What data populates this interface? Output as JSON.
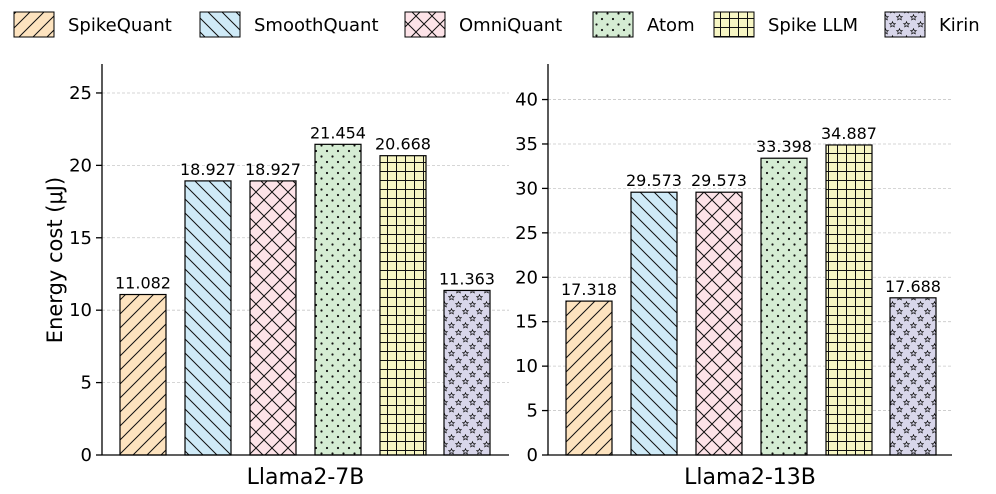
{
  "chart_data": {
    "type": "bar",
    "ylabel": "Energy cost (μJ)",
    "legend": {
      "placement": "top",
      "entries": [
        {
          "name": "SpikeQuant",
          "color": "#fde3bf",
          "hatch": "diag-up"
        },
        {
          "name": "SmoothQuant",
          "color": "#cfeaf7",
          "hatch": "diag-down"
        },
        {
          "name": "OmniQuant",
          "color": "#fde3e8",
          "hatch": "cross"
        },
        {
          "name": "Atom",
          "color": "#d5ecd3",
          "hatch": "dots"
        },
        {
          "name": "Spike LLM",
          "color": "#f7f6c4",
          "hatch": "grid"
        },
        {
          "name": "Kirin",
          "color": "#d8d6ea",
          "hatch": "stars"
        }
      ]
    },
    "panels": [
      {
        "xlabel": "Llama2-7B",
        "ylim": [
          0,
          27
        ],
        "yticks": [
          0,
          5,
          10,
          15,
          20,
          25
        ],
        "grid": true,
        "values": [
          11.082,
          18.927,
          18.927,
          21.454,
          20.668,
          11.363
        ],
        "labels": [
          "11.082",
          "18.927",
          "18.927",
          "21.454",
          "20.668",
          "11.363"
        ]
      },
      {
        "xlabel": "Llama2-13B",
        "ylim": [
          0,
          44
        ],
        "yticks": [
          0,
          5,
          10,
          15,
          20,
          25,
          30,
          35,
          40
        ],
        "grid": true,
        "values": [
          17.318,
          29.573,
          29.573,
          33.398,
          34.887,
          17.688
        ],
        "labels": [
          "17.318",
          "29.573",
          "29.573",
          "33.398",
          "34.887",
          "17.688"
        ]
      }
    ]
  }
}
